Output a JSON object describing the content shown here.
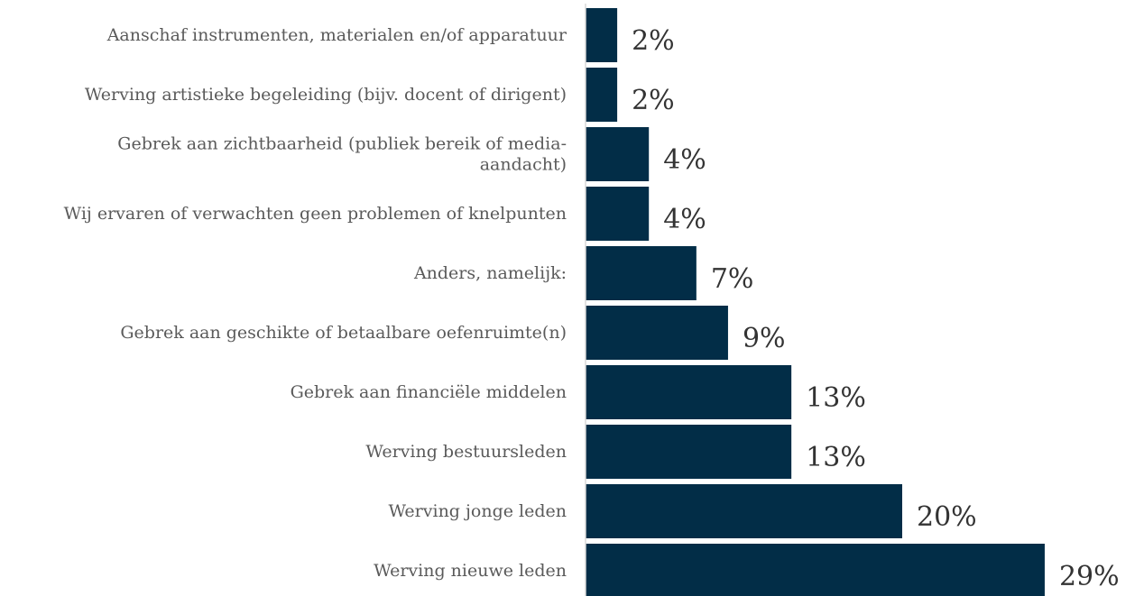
{
  "colors": {
    "bar": "#022d47",
    "axis": "#d9d9d9",
    "category_text": "#5a5a5a",
    "value_text": "#333333"
  },
  "chart_data": {
    "type": "bar",
    "orientation": "horizontal",
    "title": "",
    "xlabel": "",
    "ylabel": "",
    "grid": false,
    "legend": "none",
    "xlim": [
      0,
      30
    ],
    "categories": [
      [
        "Aanschaf instrumenten, materialen en/of apparatuur"
      ],
      [
        "Werving artistieke begeleiding (bijv. docent of dirigent)"
      ],
      [
        "Gebrek aan zichtbaarheid (publiek bereik of media-",
        "aandacht)"
      ],
      [
        "Wij ervaren of verwachten geen problemen of knelpunten"
      ],
      [
        "Anders, namelijk:"
      ],
      [
        "Gebrek aan geschikte of betaalbare oefenruimte(n)"
      ],
      [
        "Gebrek aan financiële middelen"
      ],
      [
        "Werving bestuursleden"
      ],
      [
        "Werving jonge leden"
      ],
      [
        "Werving nieuwe leden"
      ]
    ],
    "values": [
      2,
      2,
      4,
      4,
      7,
      9,
      13,
      13,
      20,
      29
    ],
    "value_labels": [
      "2%",
      "2%",
      "4%",
      "4%",
      "7%",
      "9%",
      "13%",
      "13%",
      "20%",
      "29%"
    ]
  }
}
